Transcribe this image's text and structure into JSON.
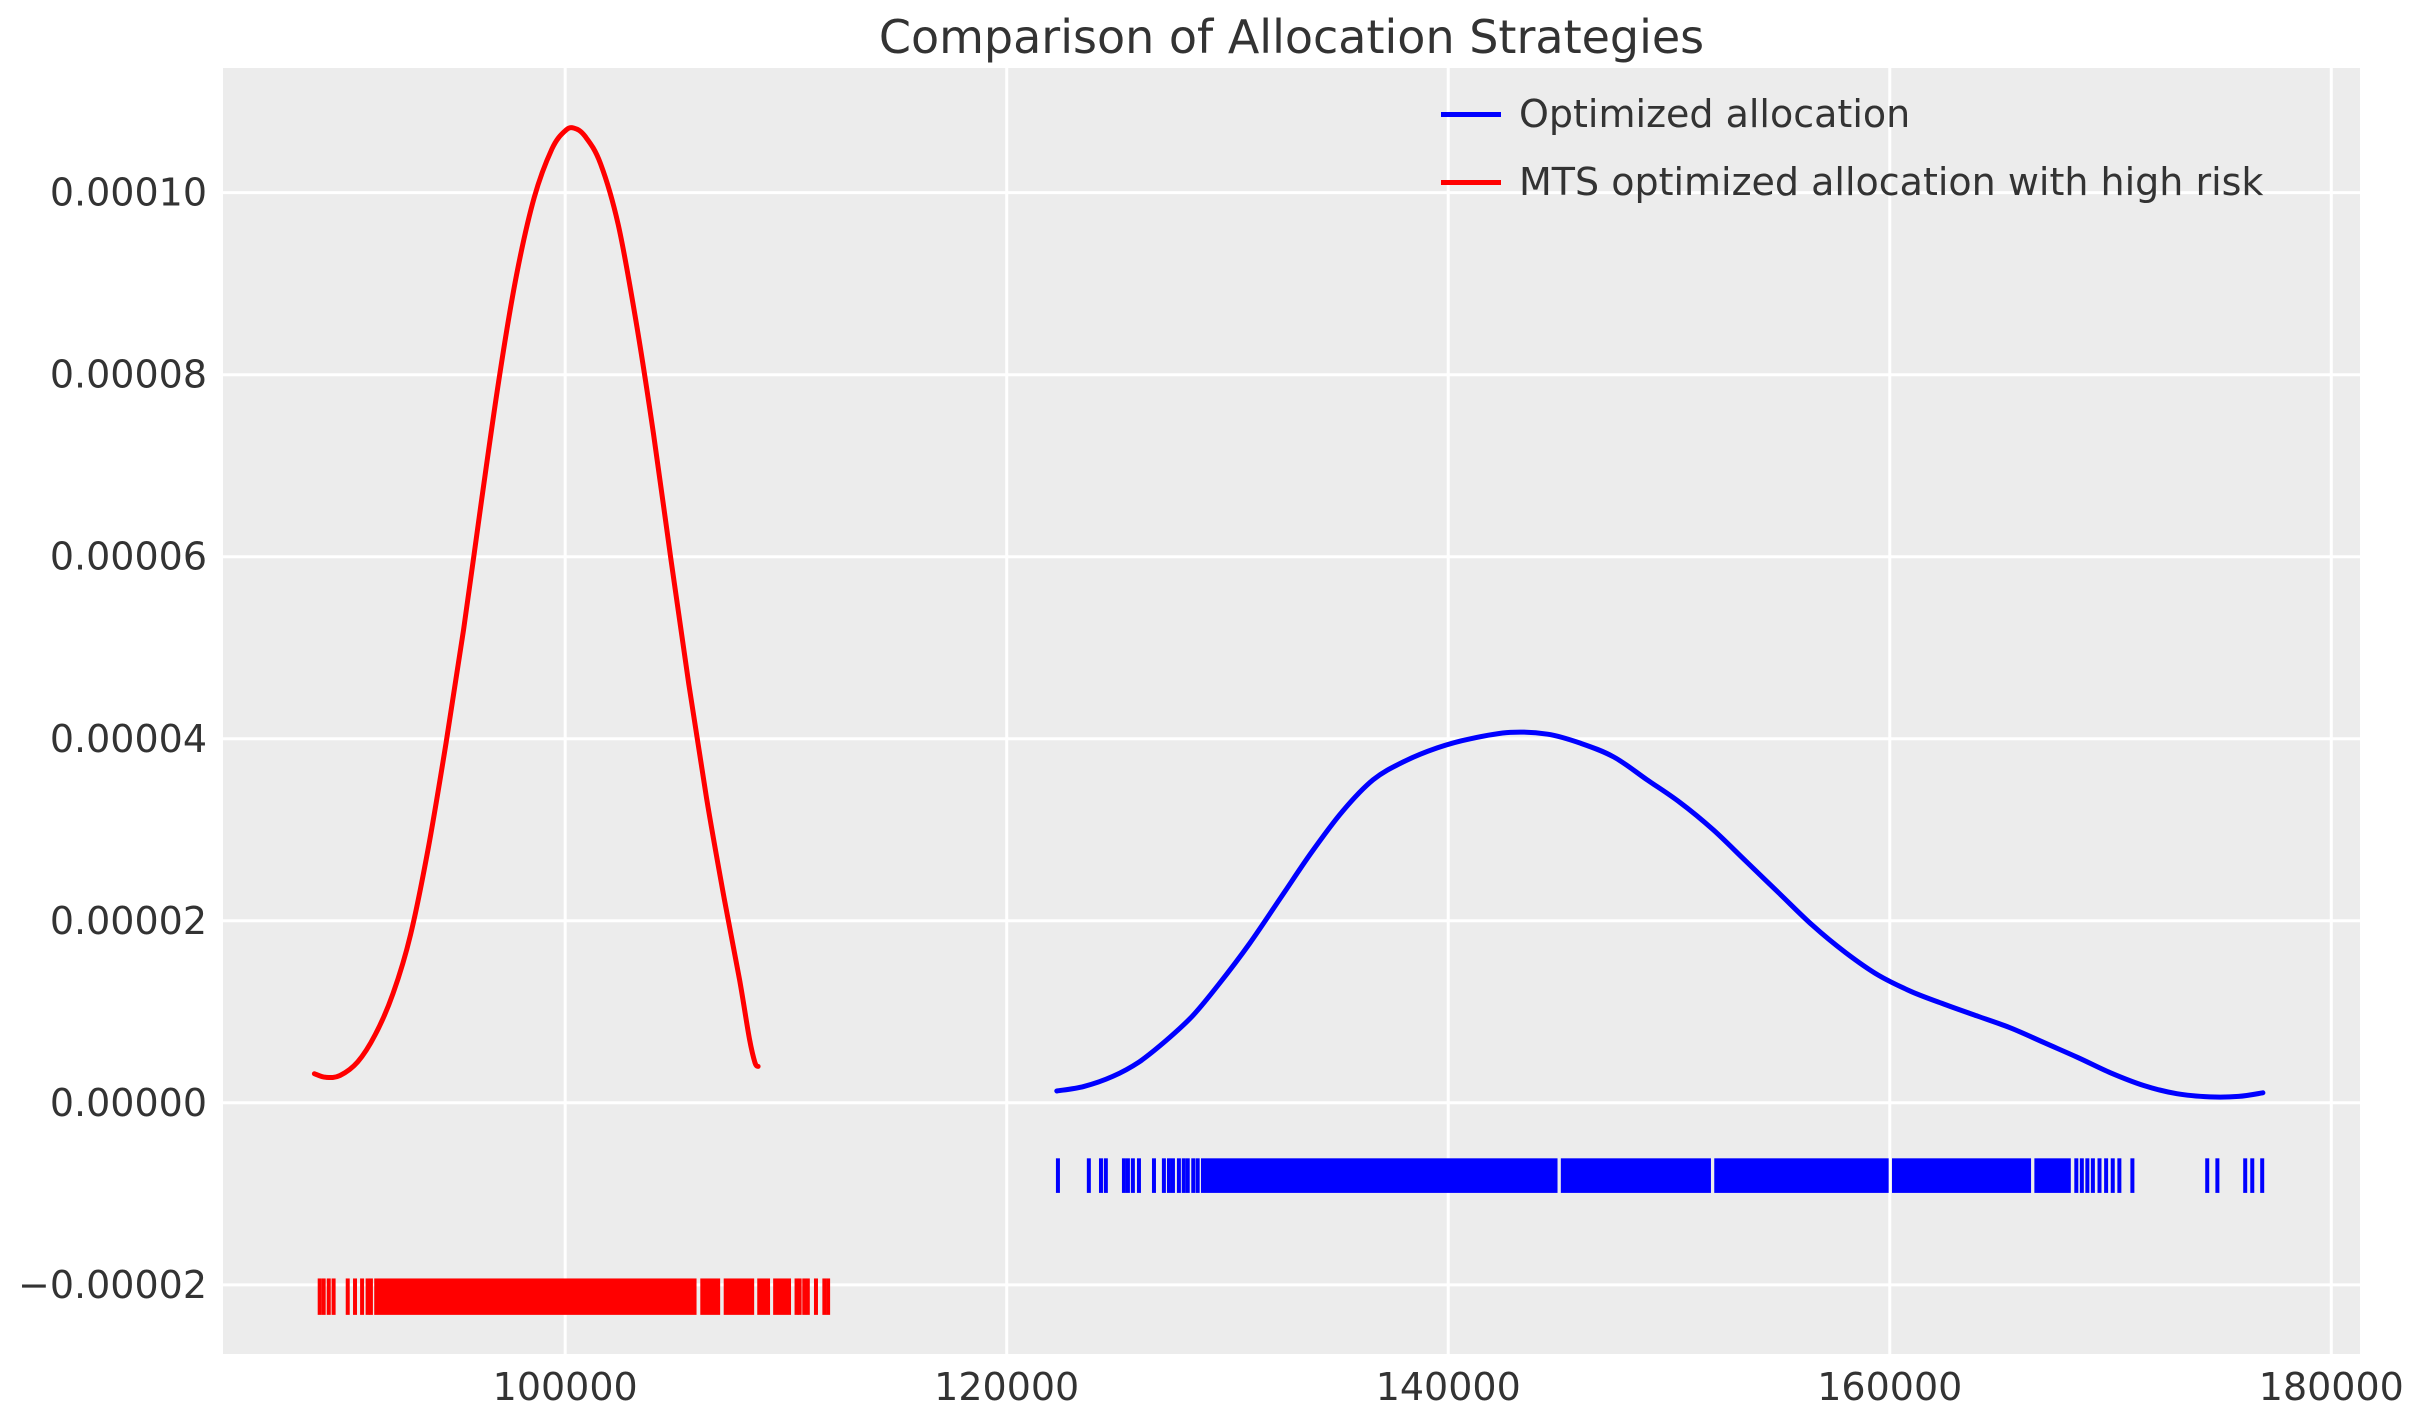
{
  "title": "Comparison of Allocation Strategies",
  "legend": {
    "entries": [
      {
        "label": "Optimized allocation",
        "color": "#0000ff"
      },
      {
        "label": "MTS optimized allocation with high risk",
        "color": "#ff0000"
      }
    ]
  },
  "colors": {
    "axes_bg": "#ececec",
    "grid": "#ffffff",
    "tick_text": "#333333",
    "title_text": "#333333",
    "blue": "#0000ff",
    "red": "#ff0000"
  },
  "chart_data": {
    "type": "line",
    "title": "Comparison of Allocation Strategies",
    "xlabel": "",
    "ylabel": "",
    "grid": true,
    "legend_position": "upper right",
    "xlim": [
      84500,
      181300
    ],
    "ylim": [
      -2.76e-05,
      0.0001137
    ],
    "x_ticks": {
      "values": [
        100000,
        120000,
        140000,
        160000,
        180000
      ],
      "labels": [
        "100000",
        "120000",
        "140000",
        "160000",
        "180000"
      ]
    },
    "y_ticks": {
      "values": [
        0.0001,
        8e-05,
        6e-05,
        4e-05,
        2e-05,
        0,
        -2e-05
      ],
      "labels": [
        "0.00010",
        "0.00008",
        "0.00006",
        "0.00004",
        "0.00002",
        "0.00000",
        "−0.00002"
      ]
    },
    "series": [
      {
        "name": "MTS optimized allocation with high risk",
        "color": "#ff0000",
        "peak": {
          "x": 100400,
          "y": 0.0001071
        },
        "points": [
          [
            88640,
            3.2e-06
          ],
          [
            89150,
            2.8e-06
          ],
          [
            89800,
            3e-06
          ],
          [
            90600,
            4.5e-06
          ],
          [
            91400,
            7.5e-06
          ],
          [
            92200,
            1.2e-05
          ],
          [
            93000,
            1.85e-05
          ],
          [
            93800,
            2.8e-05
          ],
          [
            94600,
            3.95e-05
          ],
          [
            95400,
            5.2e-05
          ],
          [
            96200,
            6.6e-05
          ],
          [
            97000,
            7.95e-05
          ],
          [
            97800,
            9.1e-05
          ],
          [
            98600,
            9.95e-05
          ],
          [
            99400,
            0.0001048
          ],
          [
            100000,
            0.0001068
          ],
          [
            100400,
            0.0001071
          ],
          [
            100900,
            0.0001062
          ],
          [
            101600,
            0.0001032
          ],
          [
            102400,
            9.65e-05
          ],
          [
            103200,
            8.6e-05
          ],
          [
            104000,
            7.35e-05
          ],
          [
            104800,
            5.95e-05
          ],
          [
            105600,
            4.6e-05
          ],
          [
            106400,
            3.35e-05
          ],
          [
            107200,
            2.25e-05
          ],
          [
            107900,
            1.35e-05
          ],
          [
            108350,
            7e-06
          ],
          [
            108600,
            4.4e-06
          ],
          [
            108740,
            4e-06
          ]
        ]
      },
      {
        "name": "Optimized allocation",
        "color": "#0000ff",
        "peak": {
          "x": 142800,
          "y": 4.07e-05
        },
        "points": [
          [
            122270,
            1.3e-06
          ],
          [
            123500,
            1.8e-06
          ],
          [
            124800,
            2.9e-06
          ],
          [
            126000,
            4.5e-06
          ],
          [
            127200,
            6.8e-06
          ],
          [
            128400,
            9.5e-06
          ],
          [
            129600,
            1.3e-05
          ],
          [
            131000,
            1.75e-05
          ],
          [
            132400,
            2.25e-05
          ],
          [
            133800,
            2.75e-05
          ],
          [
            135200,
            3.2e-05
          ],
          [
            136600,
            3.55e-05
          ],
          [
            138000,
            3.75e-05
          ],
          [
            139500,
            3.9e-05
          ],
          [
            141000,
            4e-05
          ],
          [
            142800,
            4.07e-05
          ],
          [
            144500,
            4.05e-05
          ],
          [
            146000,
            3.95e-05
          ],
          [
            147500,
            3.8e-05
          ],
          [
            149000,
            3.55e-05
          ],
          [
            150500,
            3.3e-05
          ],
          [
            152000,
            3e-05
          ],
          [
            153500,
            2.65e-05
          ],
          [
            155000,
            2.3e-05
          ],
          [
            156500,
            1.95e-05
          ],
          [
            158000,
            1.65e-05
          ],
          [
            159500,
            1.4e-05
          ],
          [
            161000,
            1.22e-05
          ],
          [
            162500,
            1.08e-05
          ],
          [
            164000,
            9.5e-06
          ],
          [
            165500,
            8.2e-06
          ],
          [
            167000,
            6.6e-06
          ],
          [
            168500,
            5e-06
          ],
          [
            170000,
            3.3e-06
          ],
          [
            171500,
            1.9e-06
          ],
          [
            173000,
            1e-06
          ],
          [
            174500,
            6.5e-07
          ],
          [
            175800,
            7e-07
          ],
          [
            176900,
            1.1e-06
          ]
        ]
      }
    ],
    "rugs": [
      {
        "name": "optimized-allocation-samples",
        "color": "#0000ff",
        "center": -8e-06,
        "half_height": 1.9e-06,
        "solid_ranges": [
          [
            128800,
            144950
          ],
          [
            145100,
            151900
          ],
          [
            152050,
            159950
          ],
          [
            160100,
            166400
          ],
          [
            166550,
            168200
          ]
        ],
        "ticks": [
          122320,
          123720,
          124270,
          124490,
          125310,
          125490,
          125715,
          125990,
          126670,
          127120,
          127350,
          127530,
          127800,
          128020,
          128200,
          128450,
          128650,
          168450,
          168700,
          168950,
          169200,
          169500,
          169800,
          170100,
          170400,
          170990,
          174380,
          174840,
          176100,
          176420,
          176870
        ]
      },
      {
        "name": "mts-high-risk-samples",
        "color": "#ff0000",
        "center": -2.13e-05,
        "half_height": 2e-06,
        "solid_ranges": [
          [
            91350,
            105950
          ],
          [
            106120,
            107020
          ],
          [
            107180,
            108560
          ],
          [
            108700,
            109280
          ],
          [
            109420,
            110230
          ]
        ],
        "ticks": [
          88880,
          89060,
          89290,
          89510,
          90150,
          90480,
          90800,
          91050,
          91200,
          110480,
          110620,
          110830,
          110990,
          111360,
          111740,
          111910
        ]
      }
    ]
  }
}
